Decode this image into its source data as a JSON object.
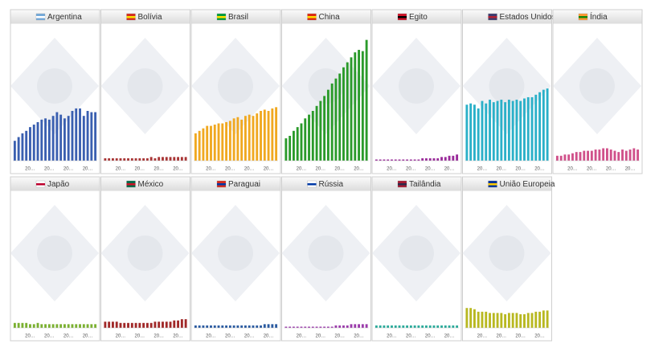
{
  "chart_data": [
    {
      "type": "bar",
      "title": "Argentina",
      "color": "#3a5fb0",
      "ylim": [
        0,
        100
      ],
      "categories": [
        null,
        null,
        null,
        null,
        "20…",
        null,
        null,
        null,
        null,
        "20…",
        null,
        null,
        null,
        null,
        "20…",
        null,
        null,
        null,
        null,
        "20…",
        null,
        null
      ],
      "values": [
        16,
        19,
        22,
        24,
        27,
        29,
        31,
        33,
        34,
        33,
        36,
        39,
        37,
        34,
        36,
        40,
        42,
        42,
        36,
        40,
        39,
        39
      ]
    },
    {
      "type": "bar",
      "title": "Bolívia",
      "color": "#a83434",
      "ylim": [
        0,
        100
      ],
      "categories": [
        null,
        null,
        null,
        null,
        "20…",
        null,
        null,
        null,
        null,
        "20…",
        null,
        null,
        null,
        null,
        "20…",
        null,
        null,
        null,
        null,
        "20…",
        null,
        null
      ],
      "values": [
        2,
        2,
        2,
        2,
        2,
        2,
        2,
        2,
        2,
        2,
        2,
        2,
        3,
        2,
        3,
        3,
        3,
        3,
        3,
        3,
        3,
        3
      ]
    },
    {
      "type": "bar",
      "title": "Brasil",
      "color": "#f0a820",
      "ylim": [
        0,
        100
      ],
      "categories": [
        null,
        null,
        null,
        null,
        "20…",
        null,
        null,
        null,
        null,
        "20…",
        null,
        null,
        null,
        null,
        "20…",
        null,
        null,
        null,
        null,
        "20…",
        null,
        null
      ],
      "values": [
        22,
        24,
        26,
        28,
        28,
        29,
        30,
        30,
        31,
        32,
        34,
        35,
        33,
        36,
        37,
        36,
        38,
        40,
        41,
        40,
        42,
        43
      ]
    },
    {
      "type": "bar",
      "title": "China",
      "color": "#2a9a2a",
      "ylim": [
        0,
        100
      ],
      "categories": [
        null,
        null,
        null,
        null,
        "20…",
        null,
        null,
        null,
        null,
        "20…",
        null,
        null,
        null,
        null,
        "20…",
        null,
        null,
        null,
        null,
        "20…",
        null,
        null
      ],
      "values": [
        18,
        20,
        24,
        27,
        30,
        34,
        37,
        40,
        44,
        48,
        52,
        57,
        62,
        66,
        70,
        75,
        79,
        83,
        87,
        89,
        88,
        97
      ]
    },
    {
      "type": "bar",
      "title": "Egito",
      "color": "#9a2a9a",
      "ylim": [
        0,
        100
      ],
      "categories": [
        null,
        null,
        null,
        null,
        "20…",
        null,
        null,
        null,
        null,
        "20…",
        null,
        null,
        null,
        null,
        "20…",
        null,
        null,
        null,
        null,
        "20…",
        null,
        null
      ],
      "values": [
        1,
        1,
        1,
        1,
        1,
        1,
        1,
        1,
        1,
        1,
        1,
        1,
        2,
        2,
        2,
        2,
        2,
        3,
        3,
        4,
        4,
        5
      ]
    },
    {
      "type": "bar",
      "title": "Estados Unidos",
      "color": "#2ab0c8",
      "ylim": [
        0,
        100
      ],
      "categories": [
        null,
        null,
        null,
        null,
        "20…",
        null,
        null,
        null,
        null,
        "20…",
        null,
        null,
        null,
        null,
        "20…",
        null,
        null,
        null,
        null,
        "20…",
        null,
        null
      ],
      "values": [
        45,
        46,
        45,
        42,
        48,
        46,
        49,
        47,
        48,
        49,
        47,
        49,
        48,
        49,
        48,
        50,
        51,
        51,
        53,
        55,
        57,
        58
      ]
    },
    {
      "type": "bar",
      "title": "Índia",
      "color": "#d0508a",
      "ylim": [
        0,
        100
      ],
      "categories": [
        null,
        null,
        null,
        null,
        "20…",
        null,
        null,
        null,
        null,
        "20…",
        null,
        null,
        null,
        null,
        "20…",
        null,
        null,
        null,
        null,
        "20…",
        null,
        null
      ],
      "values": [
        4,
        4,
        5,
        5,
        6,
        7,
        7,
        8,
        8,
        8,
        9,
        9,
        10,
        10,
        9,
        8,
        7,
        9,
        8,
        9,
        10,
        9
      ]
    },
    {
      "type": "bar",
      "title": "Japão",
      "color": "#7ab030",
      "ylim": [
        0,
        100
      ],
      "categories": [
        null,
        null,
        null,
        null,
        "20…",
        null,
        null,
        null,
        null,
        "20…",
        null,
        null,
        null,
        null,
        "20…",
        null,
        null,
        null,
        null,
        "20…",
        null,
        null
      ],
      "values": [
        4,
        4,
        4,
        4,
        3,
        3,
        4,
        3,
        3,
        3,
        3,
        3,
        3,
        3,
        3,
        3,
        3,
        3,
        3,
        3,
        3,
        3
      ]
    },
    {
      "type": "bar",
      "title": "México",
      "color": "#a02828",
      "ylim": [
        0,
        100
      ],
      "categories": [
        null,
        null,
        null,
        null,
        "20…",
        null,
        null,
        null,
        null,
        "20…",
        null,
        null,
        null,
        null,
        "20…",
        null,
        null,
        null,
        null,
        "20…",
        null,
        null
      ],
      "values": [
        5,
        5,
        5,
        5,
        4,
        4,
        4,
        4,
        4,
        4,
        4,
        4,
        4,
        5,
        5,
        5,
        5,
        5,
        6,
        6,
        7,
        7
      ]
    },
    {
      "type": "bar",
      "title": "Paraguai",
      "color": "#2a5aa0",
      "ylim": [
        0,
        100
      ],
      "categories": [
        null,
        null,
        null,
        null,
        "20…",
        null,
        null,
        null,
        null,
        "20…",
        null,
        null,
        null,
        null,
        "20…",
        null,
        null,
        null,
        null,
        "20…",
        null,
        null
      ],
      "values": [
        2,
        2,
        2,
        2,
        2,
        2,
        2,
        2,
        2,
        2,
        2,
        2,
        2,
        2,
        2,
        2,
        2,
        2,
        3,
        3,
        3,
        3
      ]
    },
    {
      "type": "bar",
      "title": "Rússia",
      "color": "#9a3aaa",
      "ylim": [
        0,
        100
      ],
      "categories": [
        null,
        null,
        null,
        null,
        "20…",
        null,
        null,
        null,
        null,
        "20…",
        null,
        null,
        null,
        null,
        "20…",
        null,
        null,
        null,
        null,
        "20…",
        null,
        null
      ],
      "values": [
        1,
        1,
        1,
        1,
        1,
        1,
        1,
        1,
        1,
        1,
        1,
        1,
        1,
        2,
        2,
        2,
        2,
        3,
        3,
        3,
        3,
        3
      ]
    },
    {
      "type": "bar",
      "title": "Tailândia",
      "color": "#2aaa9a",
      "ylim": [
        0,
        100
      ],
      "categories": [
        null,
        null,
        null,
        null,
        "20…",
        null,
        null,
        null,
        null,
        "20…",
        null,
        null,
        null,
        null,
        "20…",
        null,
        null,
        null,
        null,
        "20…",
        null,
        null
      ],
      "values": [
        2,
        2,
        2,
        2,
        2,
        2,
        2,
        2,
        2,
        2,
        2,
        2,
        2,
        2,
        2,
        2,
        2,
        2,
        2,
        2,
        2,
        2
      ]
    },
    {
      "type": "bar",
      "title": "União Europeia",
      "color": "#b8b820",
      "ylim": [
        0,
        100
      ],
      "categories": [
        null,
        null,
        null,
        null,
        "20…",
        null,
        null,
        null,
        null,
        "20…",
        null,
        null,
        null,
        null,
        "20…",
        null,
        null,
        null,
        null,
        "20…",
        null,
        null
      ],
      "values": [
        16,
        16,
        15,
        13,
        13,
        13,
        12,
        12,
        12,
        12,
        11,
        12,
        12,
        12,
        11,
        11,
        12,
        12,
        13,
        13,
        14,
        14
      ]
    }
  ]
}
